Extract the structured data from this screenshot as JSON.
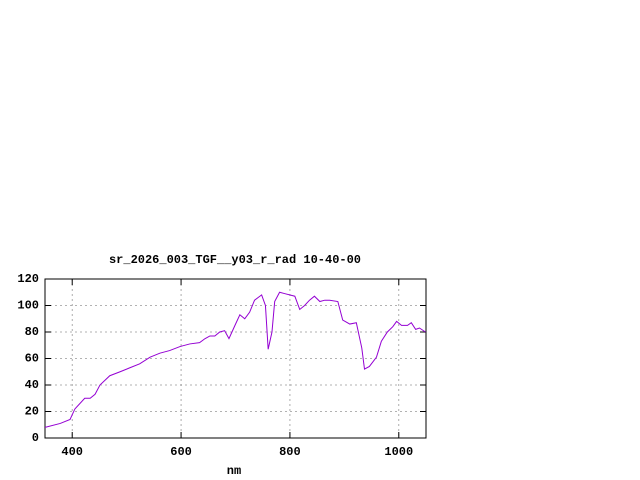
{
  "chart_data": {
    "type": "line",
    "title": "sr_2026_003_TGF__y03_r_rad 10-40-00",
    "x_label": "nm",
    "x": [
      350,
      378,
      396,
      405,
      423,
      433,
      442,
      451,
      469,
      488,
      506,
      524,
      543,
      561,
      579,
      598,
      616,
      634,
      644,
      653,
      662,
      671,
      680,
      688,
      699,
      708,
      717,
      726,
      735,
      748,
      755,
      760,
      767,
      772,
      781,
      790,
      809,
      818,
      827,
      836,
      845,
      855,
      864,
      873,
      888,
      897,
      910,
      922,
      932,
      937,
      946,
      959,
      968,
      979,
      989,
      996,
      1005,
      1016,
      1023,
      1031,
      1038,
      1049
    ],
    "series": [
      {
        "color": "#9400d3",
        "values": [
          8,
          11,
          14,
          22,
          30,
          30,
          33,
          40,
          47,
          50,
          53,
          56,
          61,
          64,
          66,
          69,
          71,
          72,
          75,
          77,
          77,
          80,
          81,
          75,
          85,
          93,
          90,
          95,
          104,
          108,
          100,
          67,
          80,
          103,
          110,
          109,
          107,
          97,
          100,
          104,
          107,
          103,
          104,
          104,
          103,
          89,
          86,
          87,
          68,
          52,
          54,
          61,
          73,
          80,
          84,
          88,
          85,
          85,
          87,
          82,
          83,
          80
        ]
      }
    ],
    "xlim": [
      350,
      1050
    ],
    "ylim": [
      0,
      120
    ],
    "xticks": [
      400,
      600,
      800,
      1000
    ],
    "yticks": [
      0,
      20,
      40,
      60,
      80,
      100,
      120
    ],
    "grid": true
  }
}
